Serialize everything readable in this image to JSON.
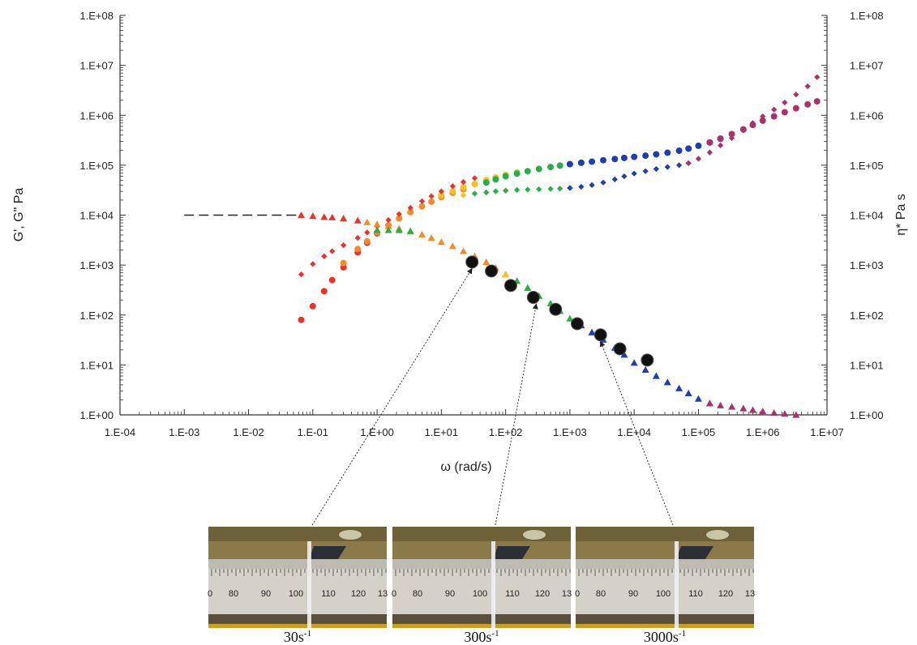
{
  "chart_data": {
    "type": "scatter",
    "x_scale": "log",
    "y_scale": "log",
    "xlabel": "ω (rad/s)",
    "ylabel_left": "G', G\" Pa",
    "ylabel_right": "η* Pa s",
    "xlim": [
      0.0001,
      10000000
    ],
    "ylim": [
      1,
      100000000
    ],
    "x_tick_labels": [
      "1.E-04",
      "1.E-03",
      "1.E-02",
      "1.E-01",
      "1.E+00",
      "1.E+01",
      "1.E+02",
      "1.E+03",
      "1.E+04",
      "1.E+05",
      "1.E+06",
      "1.E+07"
    ],
    "y_tick_labels": [
      "1.E+00",
      "1.E+01",
      "1.E+02",
      "1.E+03",
      "1.E+04",
      "1.E+05",
      "1.E+06",
      "1.E+07",
      "1.E+08"
    ],
    "grid": false,
    "reference_line": {
      "x": [
        0.001,
        0.06
      ],
      "y": [
        10000,
        10000
      ],
      "style": "dashed"
    },
    "series": [
      {
        "marker": "circle",
        "color": "#e8332b",
        "x": [
          0.066,
          0.1,
          0.15,
          0.2,
          0.3,
          0.5,
          0.7,
          1.0
        ],
        "y": [
          80,
          150,
          300,
          500,
          900,
          1800,
          2800,
          4300
        ]
      },
      {
        "marker": "circle",
        "color": "#f58a2a",
        "x": [
          0.3,
          0.5,
          0.7,
          1.0,
          1.5,
          2.2,
          3.3,
          5,
          7,
          10,
          15,
          22
        ],
        "y": [
          1100,
          2100,
          3000,
          4500,
          6300,
          8600,
          11500,
          15000,
          18500,
          23000,
          28000,
          33000
        ]
      },
      {
        "marker": "circle",
        "color": "#f2c21e",
        "x": [
          10,
          15,
          22,
          33,
          50,
          70,
          100,
          150
        ],
        "y": [
          25000,
          30000,
          36000,
          42000,
          50000,
          57000,
          64000,
          71000
        ]
      },
      {
        "marker": "circle",
        "color": "#27b04a",
        "x": [
          50,
          70,
          100,
          150,
          220,
          330,
          500,
          700,
          1000,
          1500
        ],
        "y": [
          45000,
          52000,
          60000,
          68000,
          76000,
          84000,
          92000,
          98000,
          105000,
          112000
        ]
      },
      {
        "marker": "circle",
        "color": "#1f3fb0",
        "x": [
          1000,
          1500,
          2200,
          3300,
          5000,
          7000,
          10000,
          15000,
          22000,
          33000,
          50000,
          70000,
          100000,
          150000,
          220000
        ],
        "y": [
          105000,
          112000,
          118000,
          126000,
          133000,
          140000,
          147000,
          155000,
          165000,
          178000,
          195000,
          215000,
          245000,
          285000,
          340000
        ]
      },
      {
        "marker": "circle",
        "color": "#a8336a",
        "x": [
          150000,
          220000,
          330000,
          500000,
          700000,
          1000000,
          1500000,
          2200000,
          3300000,
          5000000,
          7000000
        ],
        "y": [
          285000,
          340000,
          420000,
          520000,
          640000,
          780000,
          950000,
          1150000,
          1380000,
          1650000,
          1900000
        ]
      },
      {
        "marker": "diamond",
        "color": "#e8332b",
        "x": [
          0.066,
          0.1,
          0.15,
          0.2,
          0.3,
          0.5,
          0.7,
          1.0,
          1.5,
          2.2,
          3.3,
          5,
          7,
          10,
          15,
          22,
          33
        ],
        "y": [
          650,
          1050,
          1500,
          1900,
          2500,
          3500,
          4500,
          6000,
          8000,
          10500,
          14000,
          19000,
          24000,
          30000,
          38000,
          46000,
          55000
        ]
      },
      {
        "marker": "diamond",
        "color": "#f2c21e",
        "x": [
          22,
          33,
          50,
          70,
          100
        ],
        "y": [
          25000,
          27000,
          28500,
          30000,
          31000
        ]
      },
      {
        "marker": "diamond",
        "color": "#27b04a",
        "x": [
          33,
          50,
          70,
          100,
          150,
          220,
          330,
          500,
          700,
          1000
        ],
        "y": [
          27000,
          28500,
          30000,
          31000,
          32000,
          32500,
          33000,
          33500,
          34000,
          35000
        ]
      },
      {
        "marker": "diamond",
        "color": "#1f3fb0",
        "x": [
          1000,
          1500,
          2200,
          3300,
          5000,
          7000,
          10000,
          15000,
          22000,
          33000,
          50000,
          70000
        ],
        "y": [
          35000,
          37000,
          40000,
          45000,
          52000,
          60000,
          68000,
          76000,
          84000,
          92000,
          100000,
          110000
        ]
      },
      {
        "marker": "diamond",
        "color": "#a8336a",
        "x": [
          70000,
          100000,
          150000,
          220000,
          330000,
          500000,
          700000,
          1000000,
          1500000,
          2200000,
          3300000,
          5000000,
          7000000
        ],
        "y": [
          110000,
          135000,
          180000,
          250000,
          350000,
          500000,
          700000,
          950000,
          1300000,
          1800000,
          2600000,
          3800000,
          5800000
        ]
      },
      {
        "marker": "triangle",
        "color": "#e8332b",
        "x": [
          0.066,
          0.1,
          0.15,
          0.2,
          0.3,
          0.5
        ],
        "y": [
          10000,
          9600,
          9200,
          9000,
          8600,
          7800
        ]
      },
      {
        "marker": "triangle",
        "color": "#f58a2a",
        "x": [
          0.7,
          1.0,
          1.5,
          2.2,
          3.3,
          5,
          7,
          10,
          15,
          22,
          33,
          50,
          70,
          100
        ],
        "y": [
          7200,
          6600,
          6000,
          5400,
          4700,
          4100,
          3500,
          2900,
          2400,
          1900,
          1500,
          1150,
          870,
          650
        ]
      },
      {
        "marker": "triangle",
        "color": "#f2c21e",
        "x": [
          100,
          150,
          220,
          330
        ],
        "y": [
          650,
          480,
          350,
          240
        ]
      },
      {
        "marker": "triangle",
        "color": "#27b04a",
        "x": [
          1.0,
          1.5,
          2.2,
          3.3,
          150,
          220,
          330,
          500,
          700,
          1000,
          1500,
          2200
        ],
        "y": [
          5000,
          5000,
          5000,
          4800,
          480,
          350,
          240,
          170,
          120,
          85,
          62,
          45
        ]
      },
      {
        "marker": "triangle",
        "color": "#1f3fb0",
        "x": [
          1500,
          2200,
          3300,
          5000,
          7000,
          10000,
          15000,
          22000,
          33000,
          50000,
          70000,
          100000,
          150000
        ],
        "y": [
          62,
          45,
          32,
          22,
          16,
          11,
          8,
          6,
          4.5,
          3.4,
          2.7,
          2.1,
          1.7
        ]
      },
      {
        "marker": "triangle",
        "color": "#a8336a",
        "x": [
          150000,
          220000,
          330000,
          500000,
          700000,
          1000000,
          1500000,
          2200000,
          3300000
        ],
        "y": [
          1.7,
          1.55,
          1.45,
          1.35,
          1.25,
          1.18,
          1.1,
          1.05,
          1.0
        ]
      },
      {
        "marker": "big-circle",
        "color": "#000000",
        "x": [
          30,
          60,
          120,
          270,
          600,
          1300,
          3000,
          6000,
          16000
        ],
        "y": [
          1150,
          760,
          390,
          225,
          130,
          67,
          40,
          21,
          12.5
        ]
      }
    ],
    "callouts": [
      {
        "from_x": 30,
        "from_y": 1150,
        "photo_index": 0
      },
      {
        "from_x": 300,
        "from_y": 225,
        "photo_index": 1
      },
      {
        "from_x": 3000,
        "from_y": 40,
        "photo_index": 2
      }
    ],
    "photos": [
      {
        "caption_main": "30s",
        "caption_sup": "-1",
        "ruler_labels": [
          "0",
          "80",
          "90",
          "100",
          "110",
          "120",
          "13"
        ]
      },
      {
        "caption_main": "300s",
        "caption_sup": "-1",
        "ruler_labels": [
          "0",
          "80",
          "90",
          "100",
          "110",
          "120",
          "13"
        ]
      },
      {
        "caption_main": "3000s",
        "caption_sup": "-1",
        "ruler_labels": [
          "0",
          "80",
          "90",
          "100",
          "110",
          "120",
          "13"
        ]
      }
    ]
  }
}
